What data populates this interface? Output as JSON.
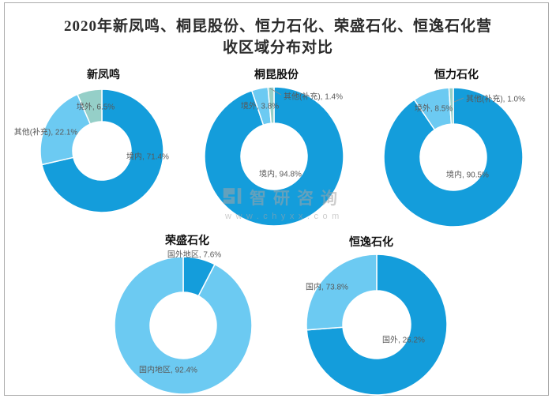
{
  "page": {
    "title_line1": "2020年新凤鸣、桐昆股份、恒力石化、荣盛石化、恒逸石化营",
    "title_line2": "收区域分布对比"
  },
  "watermark": {
    "brand": "智研咨询",
    "url": "www.chyxx.com"
  },
  "colors": {
    "dark_blue": "#149DDB",
    "light_blue": "#6CCAF2",
    "teal": "#95CFC8",
    "label_gray": "#595959",
    "frame_gray": "#ABABAB"
  },
  "chart_data": [
    {
      "type": "pie",
      "subtype": "donut",
      "title": "新凤鸣",
      "slices": [
        {
          "label": "境内",
          "value": 71.4,
          "color": "#149DDB"
        },
        {
          "label": "其他(补充)",
          "value": 22.1,
          "color": "#6CCAF2"
        },
        {
          "label": "境外",
          "value": 6.5,
          "color": "#95CFC8"
        }
      ]
    },
    {
      "type": "pie",
      "subtype": "donut",
      "title": "桐昆股份",
      "slices": [
        {
          "label": "境内",
          "value": 94.8,
          "color": "#149DDB"
        },
        {
          "label": "境外",
          "value": 3.8,
          "color": "#6CCAF2"
        },
        {
          "label": "其他(补充)",
          "value": 1.4,
          "color": "#95CFC8"
        }
      ]
    },
    {
      "type": "pie",
      "subtype": "donut",
      "title": "恒力石化",
      "slices": [
        {
          "label": "境内",
          "value": 90.5,
          "color": "#149DDB"
        },
        {
          "label": "境外",
          "value": 8.5,
          "color": "#6CCAF2"
        },
        {
          "label": "其他(补充)",
          "value": 1.0,
          "color": "#95CFC8"
        }
      ]
    },
    {
      "type": "pie",
      "subtype": "donut",
      "title": "荣盛石化",
      "slices": [
        {
          "label": "国外地区",
          "value": 7.6,
          "color": "#149DDB"
        },
        {
          "label": "国内地区",
          "value": 92.4,
          "color": "#6CCAF2"
        }
      ]
    },
    {
      "type": "pie",
      "subtype": "donut",
      "title": "恒逸石化",
      "slices": [
        {
          "label": "国内",
          "value": 73.8,
          "color": "#149DDB"
        },
        {
          "label": "国外",
          "value": 26.2,
          "color": "#6CCAF2"
        }
      ]
    }
  ]
}
